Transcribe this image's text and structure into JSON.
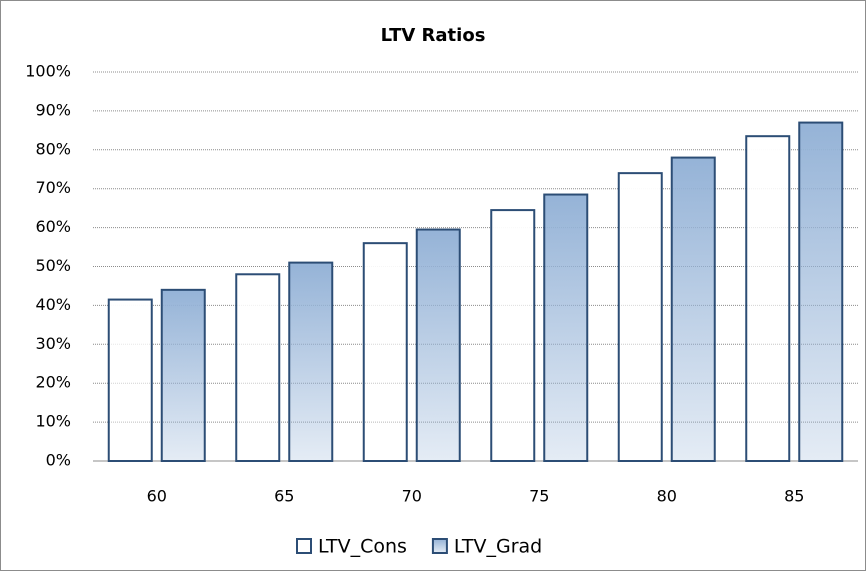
{
  "chart_data": {
    "type": "bar",
    "title": "LTV Ratios",
    "categories": [
      "60",
      "65",
      "70",
      "75",
      "80",
      "85"
    ],
    "series": [
      {
        "name": "LTV_Cons",
        "color": "#ffffff",
        "values": [
          41.5,
          48,
          56,
          64.5,
          74,
          83.5
        ]
      },
      {
        "name": "LTV_Grad",
        "color": "#95b3d7",
        "values": [
          44,
          51,
          59.5,
          68.5,
          78,
          87
        ]
      }
    ],
    "ylim": [
      0,
      100
    ],
    "yticks": [
      {
        "value": 0,
        "label": "0%"
      },
      {
        "value": 10,
        "label": "10%"
      },
      {
        "value": 20,
        "label": "20%"
      },
      {
        "value": 30,
        "label": "30%"
      },
      {
        "value": 40,
        "label": "40%"
      },
      {
        "value": 50,
        "label": "50%"
      },
      {
        "value": 60,
        "label": "60%"
      },
      {
        "value": 70,
        "label": "70%"
      },
      {
        "value": 80,
        "label": "80%"
      },
      {
        "value": 90,
        "label": "90%"
      },
      {
        "value": 100,
        "label": "100%"
      }
    ],
    "grid": true,
    "legend": "bottom"
  }
}
